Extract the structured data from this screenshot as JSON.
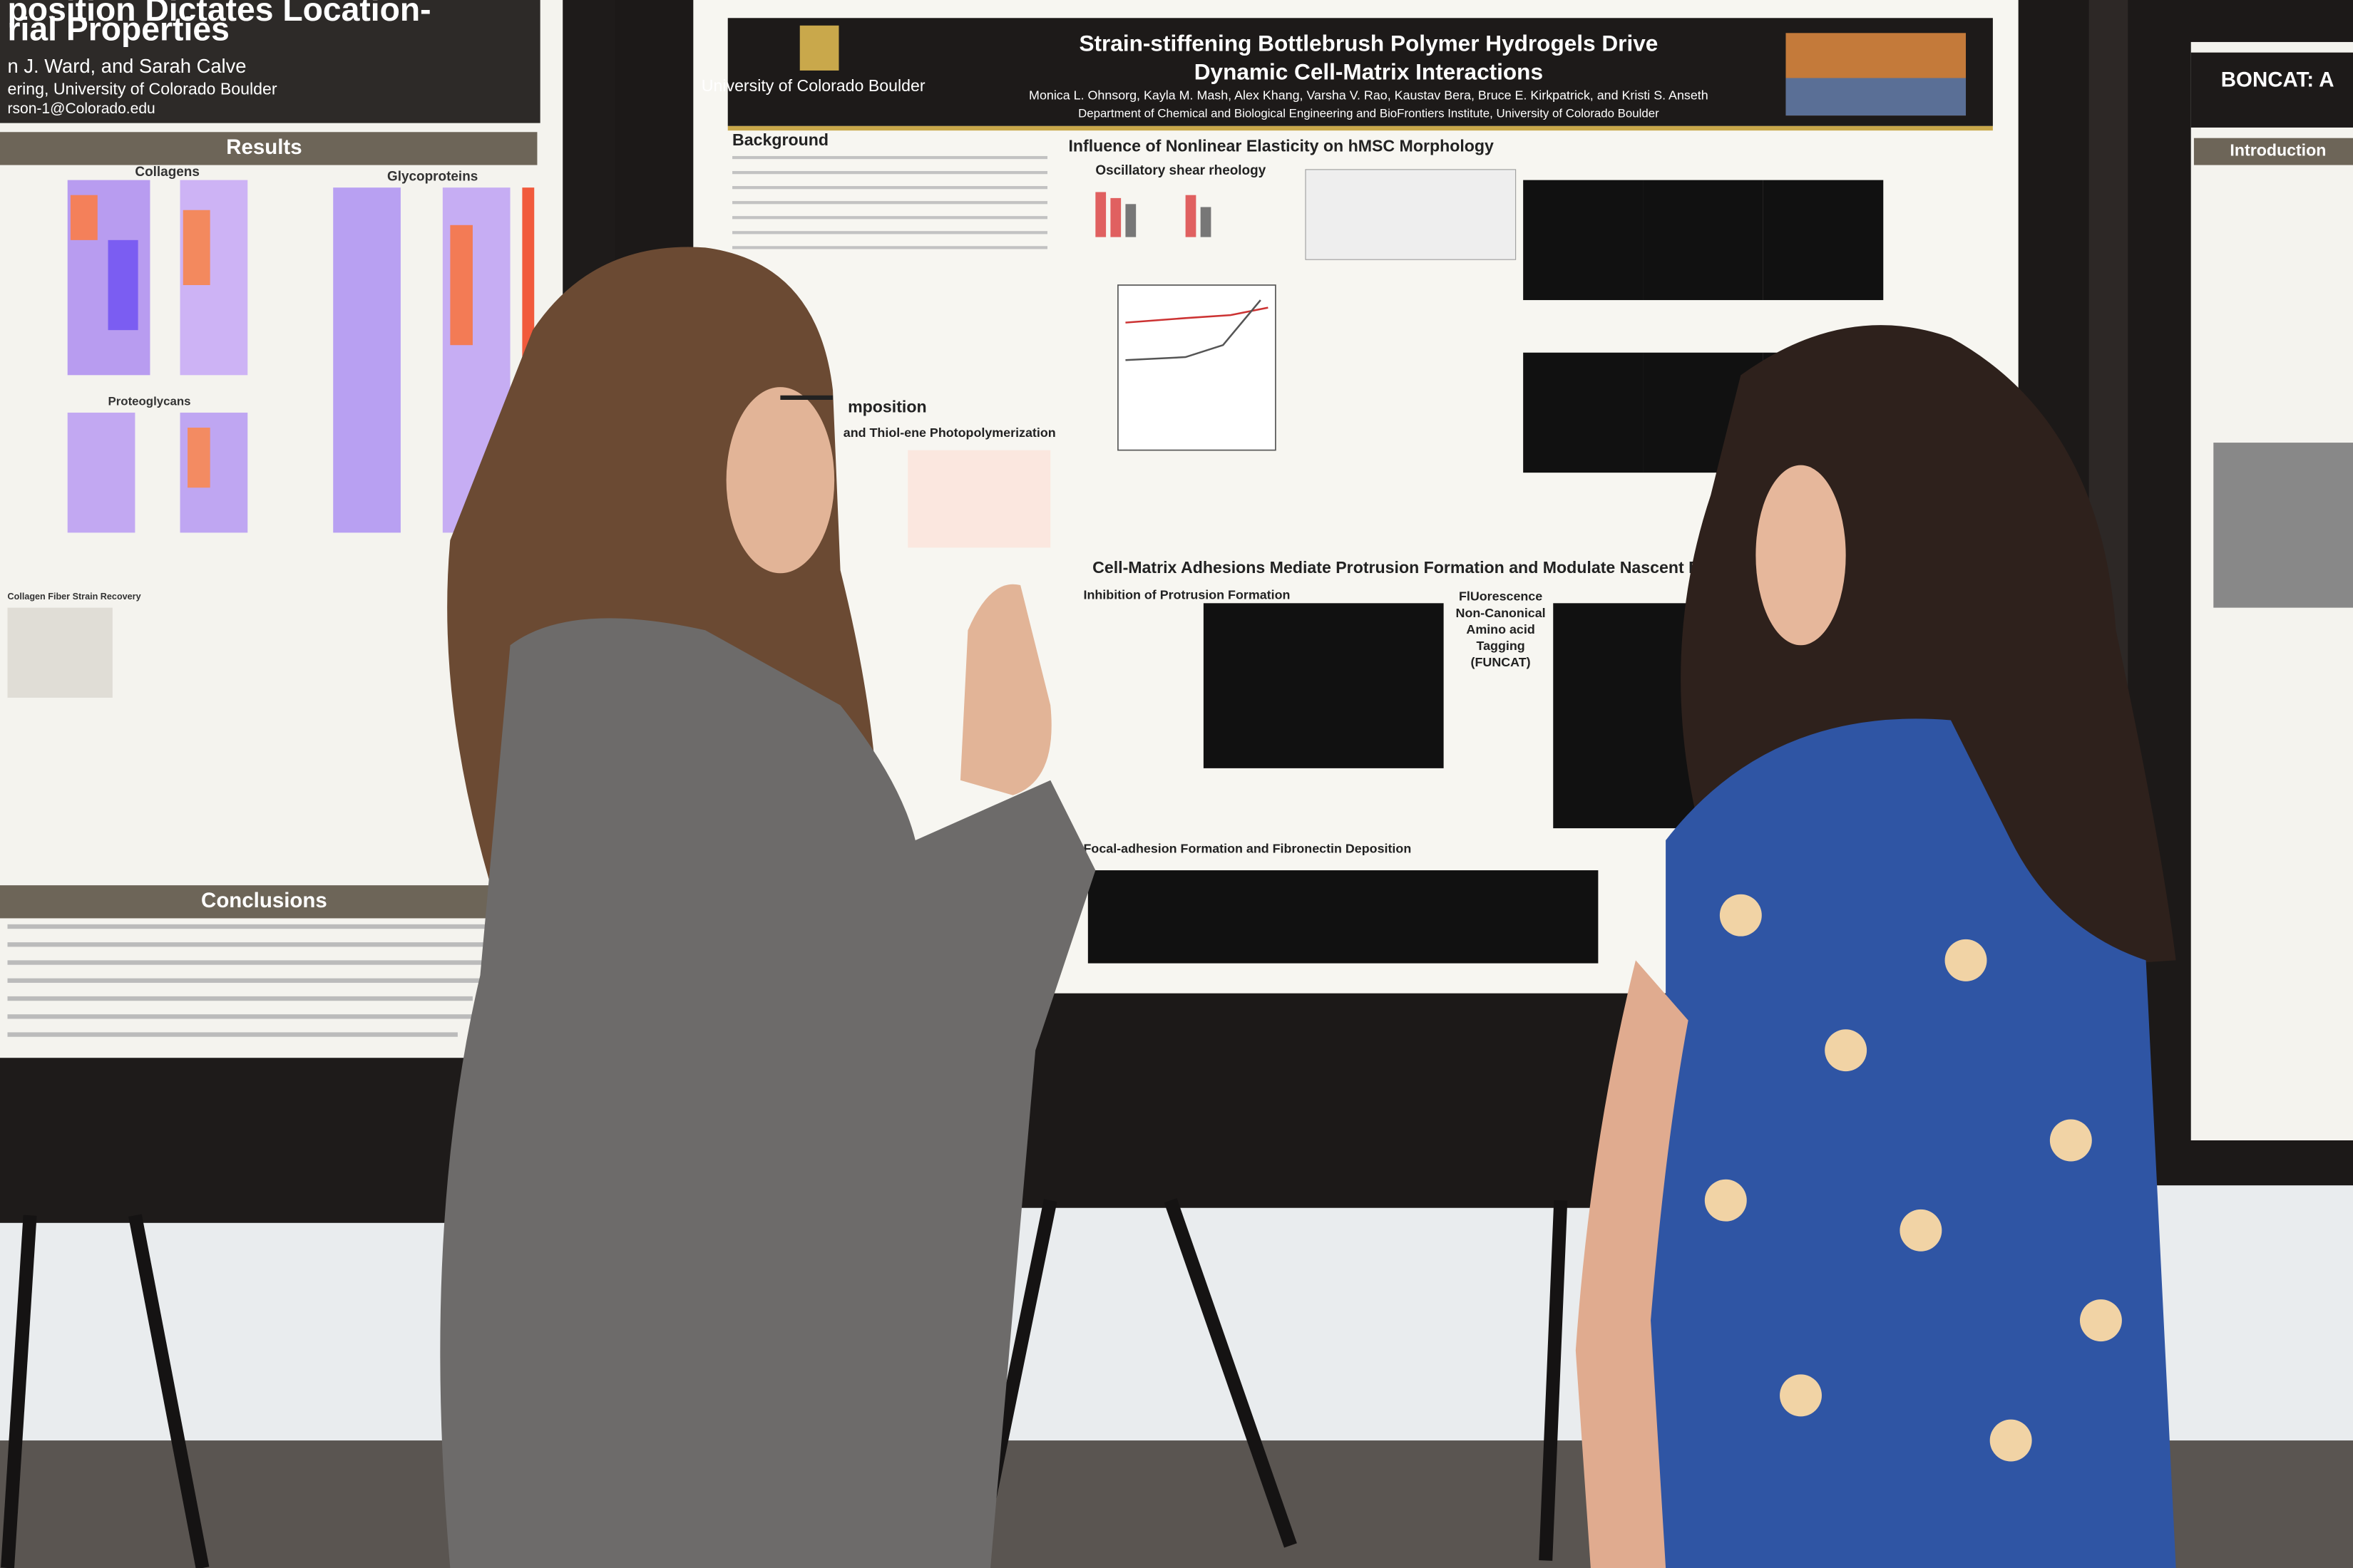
{
  "left_poster": {
    "title_line1": "position Dictates Location-",
    "title_line2": "rial Properties",
    "authors": "n J. Ward, and Sarah Calve",
    "affiliation": "ering, University of Colorado Boulder",
    "email": "rson-1@Colorado.edu",
    "sections": [
      "Results",
      "Collagens",
      "Glycoproteins",
      "Proteoglycans",
      "Collagen Fiber Strain Recovery",
      "Conclusions"
    ]
  },
  "center_poster": {
    "university": "University of Colorado Boulder",
    "title_line1": "Strain-stiffening Bottlebrush Polymer Hydrogels Drive",
    "title_line2": "Dynamic Cell-Matrix Interactions",
    "authors": "Monica L. Ohnsorg, Kayla M. Mash, Alex Khang, Varsha V. Rao, Kaustav Bera, Bruce E. Kirkpatrick, and Kristi S. Anseth",
    "department": "Department of Chemical and Biological Engineering and BioFrontiers Institute, University of Colorado Boulder",
    "sections": [
      "Background",
      "Influence of Nonlinear Elasticity on hMSC Morphology",
      "Oscillatory shear rheology",
      "mposition",
      "and Thiol-ene Photopolymerization",
      "Cell-Matrix Adhesions Mediate Protrusion Formation and Modulate Nascent Prote",
      "Inhibition of Protrusion Formation",
      "Focal-adhesion Formation and Fibronectin Deposition"
    ],
    "funcat": [
      "FlUorescence",
      "Non-Canonical",
      "Amino acid",
      "Tagging",
      "(FUNCAT)"
    ]
  },
  "right_poster": {
    "title": "BONCAT: A",
    "sections": [
      "Introduction"
    ]
  }
}
